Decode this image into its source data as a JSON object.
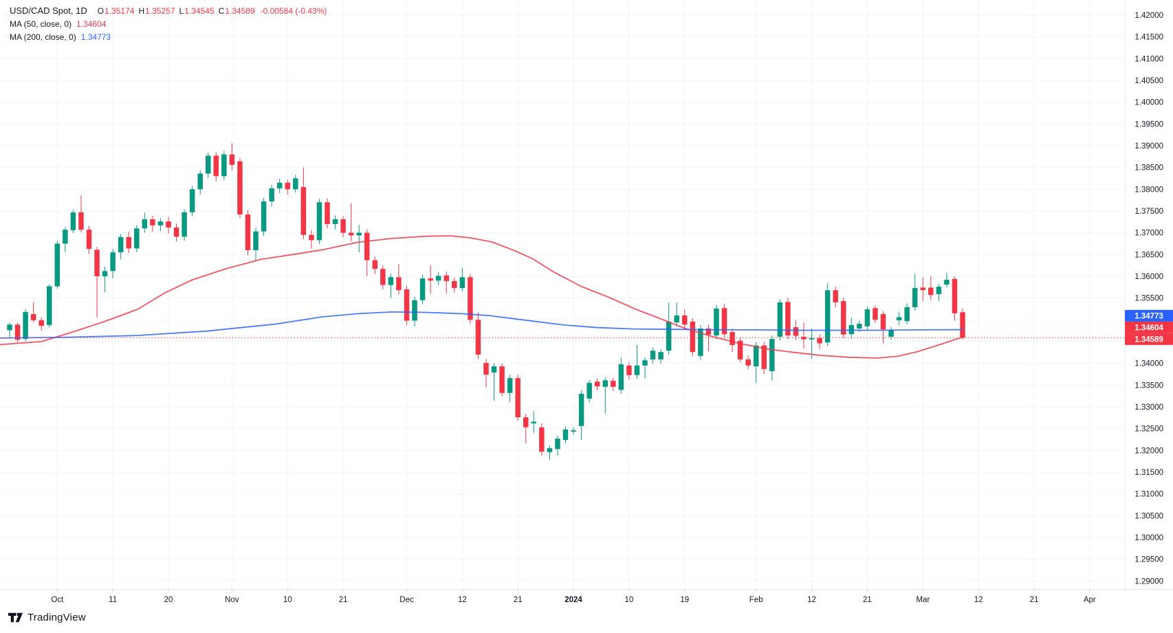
{
  "legend": {
    "title": "USD/CAD Spot, 1D",
    "o_label": "O",
    "o_value": "1.35174",
    "h_label": "H",
    "h_value": "1.35257",
    "l_label": "L",
    "l_value": "1.34545",
    "c_label": "C",
    "c_value": "1.34589",
    "change": "-0.00584 (-0.43%)",
    "ma50_label": "MA (50, close, 0)",
    "ma50_value": "1.34604",
    "ma200_label": "MA (200, close, 0)",
    "ma200_value": "1.34773"
  },
  "logo": {
    "text": "TradingView"
  },
  "colors": {
    "up": "#089981",
    "down": "#f23645",
    "ma50": "#f23645",
    "ma200": "#2962ff",
    "grid": "#f0f3fa",
    "axis_text": "#131722",
    "separator": "#e0e3eb",
    "badge_blue": "#2962ff",
    "badge_red": "#f23645",
    "last_price_line": "#f23645"
  },
  "chart_data": {
    "type": "candlestick",
    "title": "USD/CAD Spot, 1D",
    "symbol": "USD/CAD Spot",
    "timeframe": "1D",
    "last": {
      "open": 1.35174,
      "high": 1.35257,
      "low": 1.34545,
      "close": 1.34589,
      "change": -0.00584,
      "change_pct": -0.43
    },
    "y_axis": {
      "max": 1.42,
      "min": 1.29,
      "step": 0.005,
      "labels": [
        "1.42000",
        "1.41500",
        "1.41000",
        "1.40500",
        "1.40000",
        "1.39500",
        "1.39000",
        "1.38500",
        "1.38000",
        "1.37500",
        "1.37000",
        "1.36500",
        "1.36000",
        "1.35500",
        "1.35000",
        "1.34500",
        "1.34000",
        "1.33500",
        "1.33000",
        "1.32500",
        "1.32000",
        "1.31500",
        "1.31000",
        "1.30500",
        "1.30000",
        "1.29500",
        "1.29000"
      ]
    },
    "x_ticks": [
      {
        "label": "Oct",
        "index": 6
      },
      {
        "label": "11",
        "index": 13
      },
      {
        "label": "20",
        "index": 20
      },
      {
        "label": "Nov",
        "index": 28
      },
      {
        "label": "10",
        "index": 35
      },
      {
        "label": "21",
        "index": 42
      },
      {
        "label": "Dec",
        "index": 50
      },
      {
        "label": "12",
        "index": 57
      },
      {
        "label": "21",
        "index": 64
      },
      {
        "label": "2024",
        "index": 71,
        "bold": true
      },
      {
        "label": "10",
        "index": 78
      },
      {
        "label": "19",
        "index": 85
      },
      {
        "label": "Feb",
        "index": 94
      },
      {
        "label": "12",
        "index": 101
      },
      {
        "label": "21",
        "index": 108
      },
      {
        "label": "Mar",
        "index": 115
      },
      {
        "label": "12",
        "index": 122
      },
      {
        "label": "21",
        "index": 129
      },
      {
        "label": "Apr",
        "index": 136
      }
    ],
    "candles_ohlc": [
      [
        1.3476,
        1.3494,
        1.3457,
        1.3489
      ],
      [
        1.3489,
        1.3493,
        1.3448,
        1.3454
      ],
      [
        1.3456,
        1.3524,
        1.345,
        1.3518
      ],
      [
        1.3513,
        1.3541,
        1.3494,
        1.3499
      ],
      [
        1.3499,
        1.3506,
        1.3475,
        1.3486
      ],
      [
        1.3488,
        1.3582,
        1.3482,
        1.3577
      ],
      [
        1.3577,
        1.3681,
        1.3571,
        1.3675
      ],
      [
        1.3675,
        1.3713,
        1.3656,
        1.3707
      ],
      [
        1.3706,
        1.3753,
        1.3699,
        1.3747
      ],
      [
        1.3747,
        1.3786,
        1.3701,
        1.3707
      ],
      [
        1.3707,
        1.3716,
        1.3651,
        1.3663
      ],
      [
        1.3661,
        1.3668,
        1.3505,
        1.36
      ],
      [
        1.36,
        1.3622,
        1.3563,
        1.3612
      ],
      [
        1.3612,
        1.3663,
        1.3595,
        1.3655
      ],
      [
        1.3655,
        1.3697,
        1.3639,
        1.369
      ],
      [
        1.369,
        1.3702,
        1.3653,
        1.3664
      ],
      [
        1.3664,
        1.3718,
        1.3655,
        1.371
      ],
      [
        1.371,
        1.3746,
        1.37,
        1.3731
      ],
      [
        1.3731,
        1.3739,
        1.3702,
        1.3717
      ],
      [
        1.3717,
        1.3733,
        1.3704,
        1.3726
      ],
      [
        1.3726,
        1.3737,
        1.3698,
        1.3712
      ],
      [
        1.3712,
        1.3721,
        1.368,
        1.3691
      ],
      [
        1.3691,
        1.3754,
        1.3682,
        1.3747
      ],
      [
        1.3747,
        1.3808,
        1.3738,
        1.38
      ],
      [
        1.38,
        1.3843,
        1.3788,
        1.3836
      ],
      [
        1.3836,
        1.3884,
        1.3826,
        1.3877
      ],
      [
        1.3877,
        1.3885,
        1.3818,
        1.383
      ],
      [
        1.383,
        1.3888,
        1.3821,
        1.388
      ],
      [
        1.388,
        1.3905,
        1.3844,
        1.3856
      ],
      [
        1.3864,
        1.3872,
        1.3734,
        1.3742
      ],
      [
        1.3742,
        1.3752,
        1.3648,
        1.366
      ],
      [
        1.366,
        1.3712,
        1.3635,
        1.3703
      ],
      [
        1.3703,
        1.378,
        1.3693,
        1.3772
      ],
      [
        1.3772,
        1.381,
        1.376,
        1.3802
      ],
      [
        1.3802,
        1.3824,
        1.3791,
        1.3815
      ],
      [
        1.3815,
        1.3822,
        1.3788,
        1.38
      ],
      [
        1.38,
        1.3833,
        1.3792,
        1.3825
      ],
      [
        1.3805,
        1.385,
        1.3685,
        1.3695
      ],
      [
        1.3695,
        1.3706,
        1.3663,
        1.3683
      ],
      [
        1.3683,
        1.3778,
        1.3674,
        1.377
      ],
      [
        1.377,
        1.3779,
        1.371,
        1.372
      ],
      [
        1.372,
        1.374,
        1.3708,
        1.3731
      ],
      [
        1.3731,
        1.3738,
        1.369,
        1.37
      ],
      [
        1.37,
        1.3768,
        1.368,
        1.3694
      ],
      [
        1.3694,
        1.3718,
        1.3655,
        1.37
      ],
      [
        1.37,
        1.3708,
        1.36,
        1.3637
      ],
      [
        1.3637,
        1.3645,
        1.3605,
        1.3617
      ],
      [
        1.3617,
        1.3625,
        1.357,
        1.358
      ],
      [
        1.358,
        1.3606,
        1.355,
        1.3598
      ],
      [
        1.3598,
        1.3628,
        1.3558,
        1.3568
      ],
      [
        1.357,
        1.3578,
        1.3488,
        1.3498
      ],
      [
        1.3498,
        1.3553,
        1.3485,
        1.3545
      ],
      [
        1.3545,
        1.3603,
        1.3536,
        1.3595
      ],
      [
        1.3595,
        1.3625,
        1.356,
        1.359
      ],
      [
        1.359,
        1.361,
        1.358,
        1.3601
      ],
      [
        1.3602,
        1.3611,
        1.356,
        1.3589
      ],
      [
        1.3589,
        1.3597,
        1.3563,
        1.3573
      ],
      [
        1.3573,
        1.362,
        1.3565,
        1.3598
      ],
      [
        1.3598,
        1.3606,
        1.349,
        1.35
      ],
      [
        1.35,
        1.3517,
        1.341,
        1.342
      ],
      [
        1.3401,
        1.341,
        1.3345,
        1.3374
      ],
      [
        1.3379,
        1.34,
        1.3314,
        1.3393
      ],
      [
        1.3393,
        1.34,
        1.3324,
        1.3332
      ],
      [
        1.3332,
        1.3374,
        1.3311,
        1.3366
      ],
      [
        1.3366,
        1.3374,
        1.3268,
        1.3276
      ],
      [
        1.3276,
        1.3284,
        1.3216,
        1.3253
      ],
      [
        1.3262,
        1.329,
        1.324,
        1.3266
      ],
      [
        1.3253,
        1.3262,
        1.3188,
        1.3197
      ],
      [
        1.3196,
        1.3212,
        1.3178,
        1.3205
      ],
      [
        1.3203,
        1.3234,
        1.3188,
        1.3227
      ],
      [
        1.3224,
        1.3255,
        1.3216,
        1.3248
      ],
      [
        1.3243,
        1.3253,
        1.3236,
        1.3246
      ],
      [
        1.3256,
        1.3338,
        1.3224,
        1.333
      ],
      [
        1.3319,
        1.3362,
        1.331,
        1.3355
      ],
      [
        1.3358,
        1.3365,
        1.3338,
        1.3347
      ],
      [
        1.3346,
        1.3368,
        1.3284,
        1.3361
      ],
      [
        1.336,
        1.3367,
        1.3336,
        1.3346
      ],
      [
        1.3339,
        1.3414,
        1.333,
        1.3398
      ],
      [
        1.3395,
        1.3403,
        1.3363,
        1.3373
      ],
      [
        1.3373,
        1.3442,
        1.3364,
        1.3395
      ],
      [
        1.3395,
        1.3414,
        1.3365,
        1.3407
      ],
      [
        1.3409,
        1.3436,
        1.3399,
        1.3429
      ],
      [
        1.3409,
        1.3433,
        1.3399,
        1.3426
      ],
      [
        1.3429,
        1.354,
        1.342,
        1.3496
      ],
      [
        1.3494,
        1.354,
        1.3485,
        1.351
      ],
      [
        1.351,
        1.3524,
        1.3479,
        1.3489
      ],
      [
        1.3496,
        1.3504,
        1.3416,
        1.3426
      ],
      [
        1.3417,
        1.3488,
        1.3408,
        1.348
      ],
      [
        1.348,
        1.3488,
        1.3428,
        1.3466
      ],
      [
        1.3464,
        1.3534,
        1.3455,
        1.3526
      ],
      [
        1.3527,
        1.3536,
        1.3458,
        1.3467
      ],
      [
        1.3472,
        1.348,
        1.3426,
        1.3442
      ],
      [
        1.3452,
        1.346,
        1.3403,
        1.3409
      ],
      [
        1.3409,
        1.3418,
        1.3386,
        1.3395
      ],
      [
        1.3393,
        1.3449,
        1.3355,
        1.3441
      ],
      [
        1.3441,
        1.3449,
        1.3375,
        1.3387
      ],
      [
        1.3382,
        1.3464,
        1.3361,
        1.3456
      ],
      [
        1.3461,
        1.3547,
        1.3452,
        1.354
      ],
      [
        1.3541,
        1.3551,
        1.3455,
        1.3464
      ],
      [
        1.3483,
        1.3499,
        1.3453,
        1.3463
      ],
      [
        1.3461,
        1.3493,
        1.3434,
        1.3455
      ],
      [
        1.3455,
        1.348,
        1.3411,
        1.3458
      ],
      [
        1.3458,
        1.3466,
        1.3433,
        1.3446
      ],
      [
        1.3448,
        1.3584,
        1.344,
        1.3568
      ],
      [
        1.3568,
        1.3576,
        1.3529,
        1.354
      ],
      [
        1.3543,
        1.3551,
        1.3458,
        1.3466
      ],
      [
        1.3467,
        1.3505,
        1.3456,
        1.3488
      ],
      [
        1.348,
        1.3498,
        1.3472,
        1.3491
      ],
      [
        1.3485,
        1.3531,
        1.3477,
        1.3524
      ],
      [
        1.3527,
        1.3534,
        1.3493,
        1.35
      ],
      [
        1.3513,
        1.352,
        1.3446,
        1.3478
      ],
      [
        1.3461,
        1.3484,
        1.3455,
        1.3477
      ],
      [
        1.3499,
        1.3519,
        1.3488,
        1.3506
      ],
      [
        1.3497,
        1.3538,
        1.349,
        1.3529
      ],
      [
        1.3529,
        1.3606,
        1.3521,
        1.3573
      ],
      [
        1.3574,
        1.3598,
        1.3543,
        1.3568
      ],
      [
        1.3574,
        1.36,
        1.3545,
        1.3557
      ],
      [
        1.3559,
        1.3583,
        1.3543,
        1.3576
      ],
      [
        1.3581,
        1.3608,
        1.3574,
        1.3592
      ],
      [
        1.3594,
        1.36,
        1.3498,
        1.3515
      ],
      [
        1.35174,
        1.35257,
        1.34545,
        1.34589
      ]
    ],
    "series": [
      {
        "name": "MA (50, close, 0)",
        "value": 1.34604,
        "color": "#f23645",
        "points": [
          [
            0,
            1.3443
          ],
          [
            60,
            1.345
          ],
          [
            100,
            1.3469
          ],
          [
            150,
            1.3495
          ],
          [
            200,
            1.3524
          ],
          [
            240,
            1.3562
          ],
          [
            280,
            1.3592
          ],
          [
            330,
            1.3618
          ],
          [
            380,
            1.3639
          ],
          [
            430,
            1.3651
          ],
          [
            470,
            1.3661
          ],
          [
            520,
            1.3678
          ],
          [
            570,
            1.3687
          ],
          [
            620,
            1.3692
          ],
          [
            655,
            1.3693
          ],
          [
            685,
            1.3688
          ],
          [
            715,
            1.3679
          ],
          [
            745,
            1.3661
          ],
          [
            775,
            1.364
          ],
          [
            805,
            1.361
          ],
          [
            845,
            1.3577
          ],
          [
            885,
            1.3552
          ],
          [
            925,
            1.3524
          ],
          [
            955,
            1.3506
          ],
          [
            995,
            1.3481
          ],
          [
            1035,
            1.3462
          ],
          [
            1075,
            1.3446
          ],
          [
            1115,
            1.3433
          ],
          [
            1155,
            1.3425
          ],
          [
            1195,
            1.3418
          ],
          [
            1235,
            1.3414
          ],
          [
            1275,
            1.3412
          ],
          [
            1305,
            1.3416
          ],
          [
            1335,
            1.3427
          ],
          [
            1365,
            1.3442
          ],
          [
            1400,
            1.34604
          ]
        ]
      },
      {
        "name": "MA (200, close, 0)",
        "value": 1.34773,
        "color": "#2962ff",
        "points": [
          [
            0,
            1.3458
          ],
          [
            100,
            1.346
          ],
          [
            200,
            1.3464
          ],
          [
            300,
            1.3474
          ],
          [
            400,
            1.349
          ],
          [
            470,
            1.3507
          ],
          [
            520,
            1.3514
          ],
          [
            570,
            1.3518
          ],
          [
            620,
            1.3517
          ],
          [
            670,
            1.3514
          ],
          [
            710,
            1.351
          ],
          [
            760,
            1.35
          ],
          [
            820,
            1.3488
          ],
          [
            870,
            1.3482
          ],
          [
            920,
            1.3479
          ],
          [
            980,
            1.3478
          ],
          [
            1040,
            1.3477
          ],
          [
            1100,
            1.3477
          ],
          [
            1160,
            1.3476
          ],
          [
            1220,
            1.3476
          ],
          [
            1280,
            1.3476
          ],
          [
            1340,
            1.3477
          ],
          [
            1400,
            1.34773
          ]
        ]
      }
    ],
    "badges": [
      {
        "text": "1.34773",
        "price": 1.34773,
        "color": "#2962ff"
      },
      {
        "text": "1.34604",
        "price": 1.34604,
        "color": "#f23645"
      },
      {
        "text": "1.34589",
        "price": 1.34589,
        "color": "#f23645"
      }
    ],
    "last_price": 1.34589,
    "grid": true,
    "legend_position": "top-left"
  }
}
